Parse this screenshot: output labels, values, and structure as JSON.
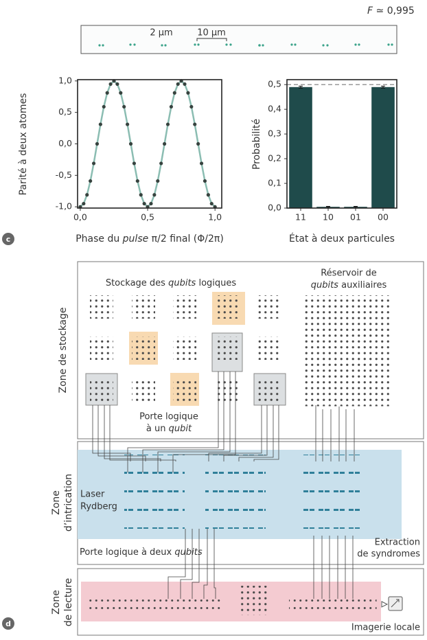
{
  "chart_data": [
    {
      "type": "line",
      "y_label": "Parité à deux atomes",
      "x_label": [
        "Phase du ",
        "pulse",
        " π/2 final (Φ/2π)"
      ],
      "x": [
        0,
        0.025,
        0.05,
        0.075,
        0.1,
        0.125,
        0.15,
        0.175,
        0.2,
        0.225,
        0.25,
        0.275,
        0.3,
        0.325,
        0.35,
        0.375,
        0.4,
        0.425,
        0.45,
        0.475,
        0.5,
        0.525,
        0.55,
        0.575,
        0.6,
        0.625,
        0.65,
        0.675,
        0.7,
        0.725,
        0.75,
        0.775,
        0.8,
        0.825,
        0.85,
        0.875,
        0.9,
        0.925,
        0.95,
        0.975,
        1
      ],
      "series": [
        {
          "values": [
            -1,
            -0.95,
            -0.81,
            -0.59,
            -0.31,
            0,
            0.31,
            0.59,
            0.81,
            0.95,
            1,
            0.95,
            0.81,
            0.59,
            0.31,
            0,
            -0.31,
            -0.59,
            -0.81,
            -0.95,
            -1,
            -0.95,
            -0.81,
            -0.59,
            -0.31,
            0,
            0.31,
            0.59,
            0.81,
            0.95,
            1,
            0.95,
            0.81,
            0.59,
            0.31,
            0,
            -0.31,
            -0.59,
            -0.81,
            -0.95,
            -1
          ],
          "color": "#8bbdb2",
          "marker_color": "#37433f"
        }
      ],
      "xlim": [
        -0.02,
        1.05
      ],
      "ylim": [
        -1.02,
        1.02
      ],
      "xticks": [
        {
          "value": 0,
          "label": "0,0"
        },
        {
          "value": 0.5,
          "label": "0,5"
        },
        {
          "value": 1,
          "label": "1,0"
        }
      ],
      "yticks": [
        {
          "value": -1,
          "label": "-1,0"
        },
        {
          "value": -0.5,
          "label": "-0,5"
        },
        {
          "value": 0,
          "label": "0,0"
        },
        {
          "value": 0.5,
          "label": "0,5"
        },
        {
          "value": 1,
          "label": "1,0"
        }
      ]
    },
    {
      "type": "bar",
      "y_label": "Probabilité",
      "x_label": "État à deux particules",
      "categories": [
        "11",
        "10",
        "01",
        "00"
      ],
      "values": [
        0.49,
        0.005,
        0.005,
        0.49
      ],
      "errors": [
        0.004,
        0.002,
        0.002,
        0.004
      ],
      "color": "#1f4b4b",
      "ylim": [
        0,
        0.52
      ],
      "reference_line": 0.5,
      "yticks": [
        {
          "value": 0,
          "label": "0,0"
        },
        {
          "value": 0.1,
          "label": "0,1"
        },
        {
          "value": 0.2,
          "label": "0,2"
        },
        {
          "value": 0.3,
          "label": "0,3"
        },
        {
          "value": 0.4,
          "label": "0,4"
        },
        {
          "value": 0.5,
          "label": "0,5"
        }
      ]
    }
  ],
  "header": {
    "fidelity": [
      "F",
      " ≃ 0,995"
    ]
  },
  "image_strip": {
    "scale_small": "2 μm",
    "scale_large": "10 μm"
  },
  "panel_labels": [
    "c",
    "d"
  ],
  "diagram": {
    "storage_zone": "Zone de stockage",
    "logical_storage": [
      "Stockage des ",
      "qubits",
      " logiques"
    ],
    "reservoir": {
      "line1": "Réservoir de",
      "line2": [
        "qubits",
        " auxiliaires"
      ]
    },
    "single_gate": {
      "line1": "Porte logique",
      "line2": [
        "à un ",
        "qubit"
      ]
    },
    "entangle_zone": [
      "Zone",
      "d’intrication"
    ],
    "laser": [
      "Laser",
      "Rydberg"
    ],
    "two_gate": [
      "Porte logique à deux ",
      "qubits"
    ],
    "syndrome": [
      "Extraction",
      "de syndromes"
    ],
    "readout_zone": [
      "Zone",
      "de lecture"
    ],
    "local_imaging": "Imagerie locale"
  }
}
